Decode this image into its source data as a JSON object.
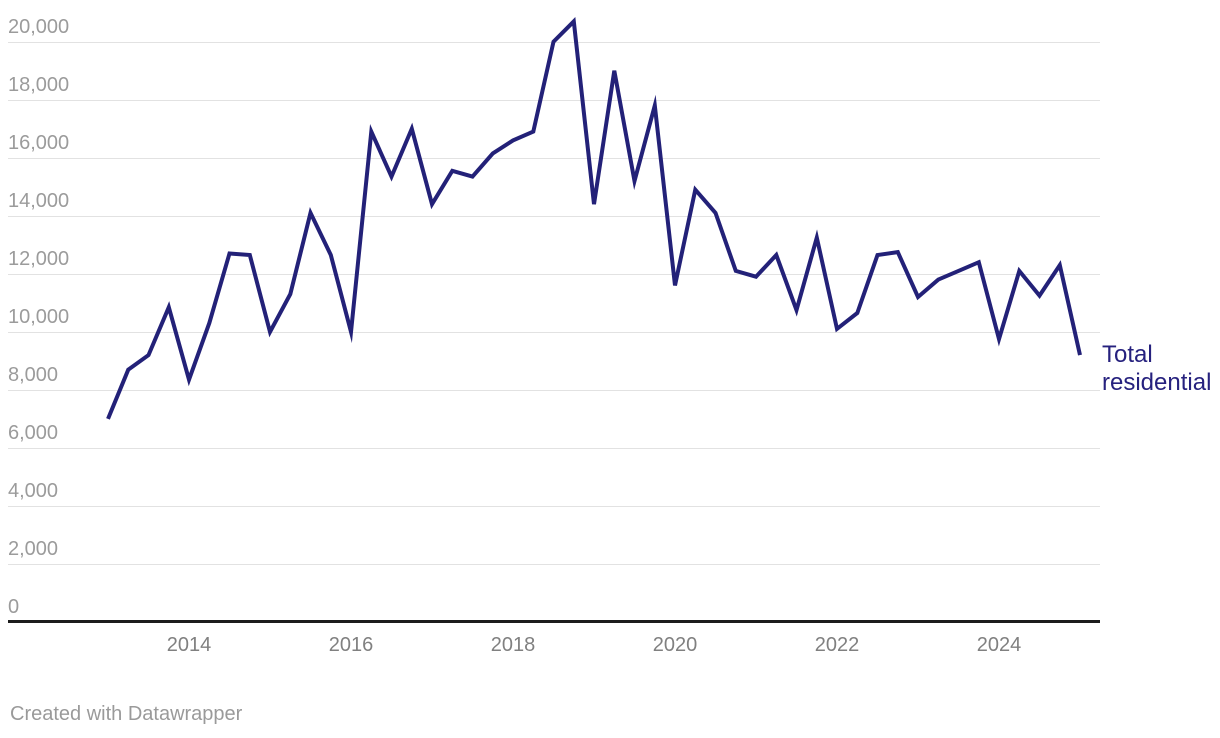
{
  "chart_data": {
    "type": "line",
    "title": "",
    "series_label": "Total residential",
    "x": [
      "2013-Q1",
      "2013-Q2",
      "2013-Q3",
      "2013-Q4",
      "2014-Q1",
      "2014-Q2",
      "2014-Q3",
      "2014-Q4",
      "2015-Q1",
      "2015-Q2",
      "2015-Q3",
      "2015-Q4",
      "2016-Q1",
      "2016-Q2",
      "2016-Q3",
      "2016-Q4",
      "2017-Q1",
      "2017-Q2",
      "2017-Q3",
      "2017-Q4",
      "2018-Q1",
      "2018-Q2",
      "2018-Q3",
      "2018-Q4",
      "2019-Q1",
      "2019-Q2",
      "2019-Q3",
      "2019-Q4",
      "2020-Q1",
      "2020-Q2",
      "2020-Q3",
      "2020-Q4",
      "2021-Q1",
      "2021-Q2",
      "2021-Q3",
      "2021-Q4",
      "2022-Q1",
      "2022-Q2",
      "2022-Q3",
      "2022-Q4",
      "2023-Q1",
      "2023-Q2",
      "2023-Q3",
      "2023-Q4",
      "2024-Q1",
      "2024-Q2",
      "2024-Q3",
      "2024-Q4",
      "2025-Q1"
    ],
    "values": [
      7000,
      8700,
      9200,
      10850,
      8350,
      10300,
      12700,
      12650,
      10000,
      11300,
      14100,
      12650,
      10000,
      16900,
      15350,
      17000,
      14400,
      15550,
      15350,
      16150,
      16600,
      16900,
      20000,
      20700,
      14400,
      19000,
      15200,
      17800,
      11600,
      14900,
      14100,
      12100,
      11900,
      12650,
      10750,
      13250,
      10100,
      10650,
      12650,
      12750,
      11200,
      11800,
      12100,
      12400,
      9750,
      12100,
      11250,
      12300,
      9200
    ],
    "x_tick_labels": [
      "2014",
      "2016",
      "2018",
      "2020",
      "2022",
      "2024"
    ],
    "y_tick_labels": [
      "20,000",
      "18,000",
      "16,000",
      "14,000",
      "12,000",
      "10,000",
      "8,000",
      "6,000",
      "4,000",
      "2,000",
      "0"
    ],
    "y_ticks": [
      20000,
      18000,
      16000,
      14000,
      12000,
      10000,
      8000,
      6000,
      4000,
      2000,
      0
    ],
    "ylim": [
      0,
      21000
    ],
    "grid": "horizontal",
    "legend_position": "right-of-line-end",
    "line_color": "#232178",
    "gridline_color": "#e2e2e2",
    "axis_color": "#1c1c1c",
    "y_label_color": "#9b9b9b",
    "x_label_color": "#808080"
  },
  "footer": {
    "credit": "Created with Datawrapper"
  }
}
